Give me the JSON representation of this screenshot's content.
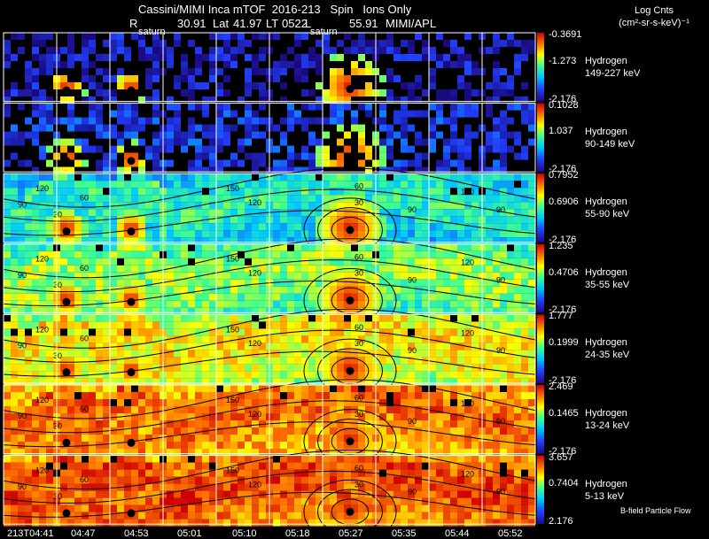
{
  "header": {
    "title": "Cassini/MIMI Inca mTOF  2016-213   Spin   Ions Only",
    "r_label": "R",
    "r_value": "30.91",
    "lat_label": "Lat",
    "lat_value": "41.97",
    "lt_label": "LT",
    "lt_value": "0522",
    "l_label": "L",
    "l_value": "55.91",
    "credit": "MIMI/APL",
    "saturn_labels": [
      "saturn",
      "saturn"
    ]
  },
  "units": {
    "line1": "Log Cnts",
    "line2": "(cm²-sr-s-keV)⁻¹"
  },
  "footer_note": "B-field Particle Flow",
  "chart_data": {
    "type": "heatmap",
    "title": "Cassini/MIMI Inca mTOF  2016-213   Spin   Ions Only",
    "time_ticks": [
      "213T04:41",
      "04:47",
      "04:53",
      "05:01",
      "05:10",
      "05:18",
      "05:27",
      "05:35",
      "05:44",
      "05:52"
    ],
    "pitch_angle_contours": [
      "30",
      "60",
      "90",
      "120",
      "150"
    ],
    "colorscale": [
      "#1a0a80",
      "#2040ff",
      "#00c8ff",
      "#40ff90",
      "#ffff00",
      "#ff7000",
      "#d00000"
    ],
    "rows": [
      {
        "species": "Hydrogen",
        "energy": "149-227 keV",
        "cb_max": "-0.3691",
        "cb_mid": "-1.273",
        "cb_min": "-2.176",
        "level": 0.05
      },
      {
        "species": "Hydrogen",
        "energy": "90-149 keV",
        "cb_max": "0.1028",
        "cb_mid": "1.037",
        "cb_min": "-2.176",
        "level": 0.12
      },
      {
        "species": "Hydrogen",
        "energy": "55-90 keV",
        "cb_max": "0.7952",
        "cb_mid": "0.6906",
        "cb_min": "-2.176",
        "level": 0.35
      },
      {
        "species": "Hydrogen",
        "energy": "35-55 keV",
        "cb_max": "1.235",
        "cb_mid": "0.4706",
        "cb_min": "-2.176",
        "level": 0.48
      },
      {
        "species": "Hydrogen",
        "energy": "24-35 keV",
        "cb_max": "1.777",
        "cb_mid": "0.1999",
        "cb_min": "-2.176",
        "level": 0.6
      },
      {
        "species": "Hydrogen",
        "energy": "13-24 keV",
        "cb_max": "2.469",
        "cb_mid": "0.1465",
        "cb_min": "-2.176",
        "level": 0.75
      },
      {
        "species": "Hydrogen",
        "energy": "5-13 keV",
        "cb_max": "3.657",
        "cb_mid": "0.7404",
        "cb_min": "2.176",
        "level": 0.8
      }
    ]
  }
}
